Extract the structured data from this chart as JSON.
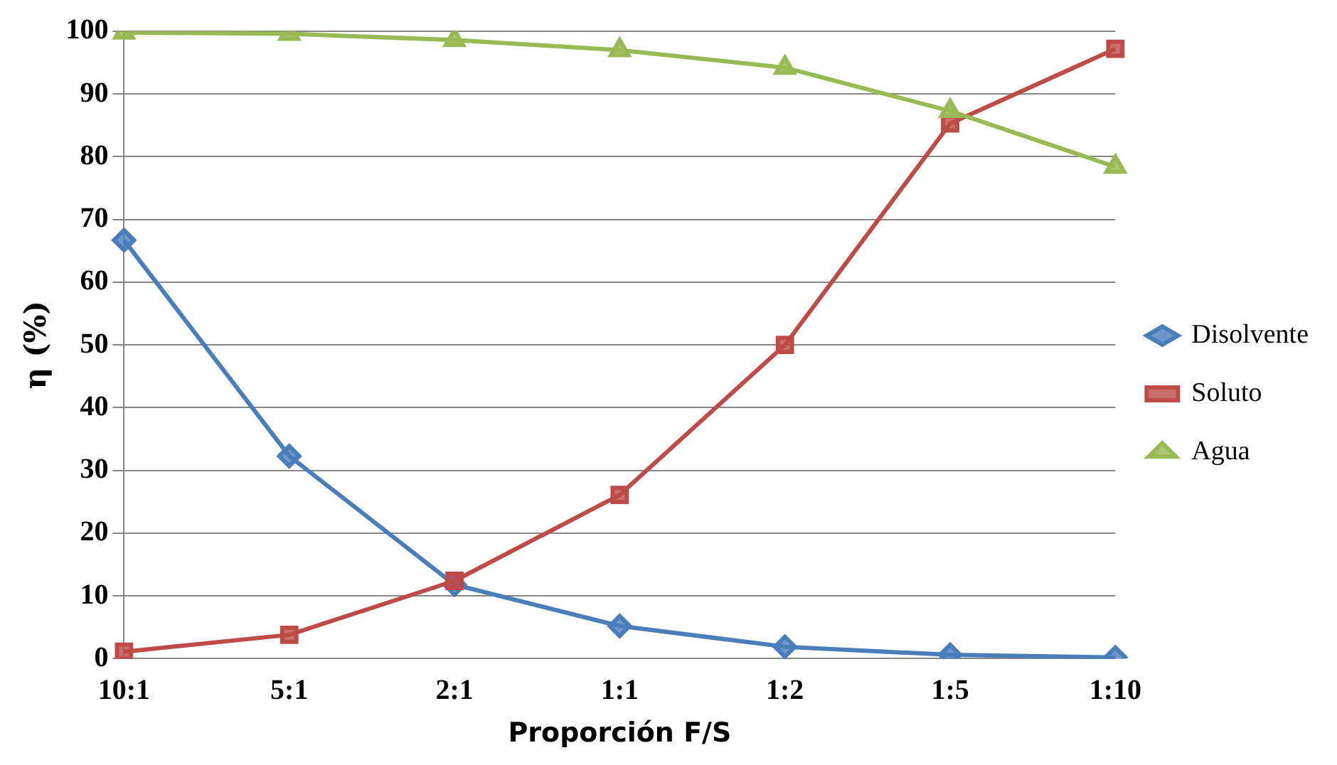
{
  "chart_data": {
    "type": "line",
    "xlabel": "Proporción F/S",
    "ylabel": "η (%)",
    "categories": [
      "10:1",
      "5:1",
      "2:1",
      "1:1",
      "1:2",
      "1:5",
      "1:10"
    ],
    "series": [
      {
        "name": "Disolvente",
        "color": "#4a7ebb",
        "marker": "diamond",
        "values": [
          66.7,
          32.3,
          11.8,
          5.2,
          1.9,
          0.6,
          0.2
        ]
      },
      {
        "name": "Soluto",
        "color": "#be4b48",
        "marker": "square",
        "values": [
          1.1,
          3.8,
          12.4,
          26.1,
          50.0,
          85.3,
          97.2
        ]
      },
      {
        "name": "Agua",
        "color": "#98b954",
        "marker": "triangle",
        "values": [
          99.8,
          99.6,
          98.6,
          97.0,
          94.2,
          87.3,
          78.4
        ]
      }
    ],
    "ylim": [
      0,
      100
    ],
    "yticks": [
      0,
      10,
      20,
      30,
      40,
      50,
      60,
      70,
      80,
      90,
      100
    ],
    "grid": "y",
    "legend": "right",
    "line_style": "solid"
  }
}
